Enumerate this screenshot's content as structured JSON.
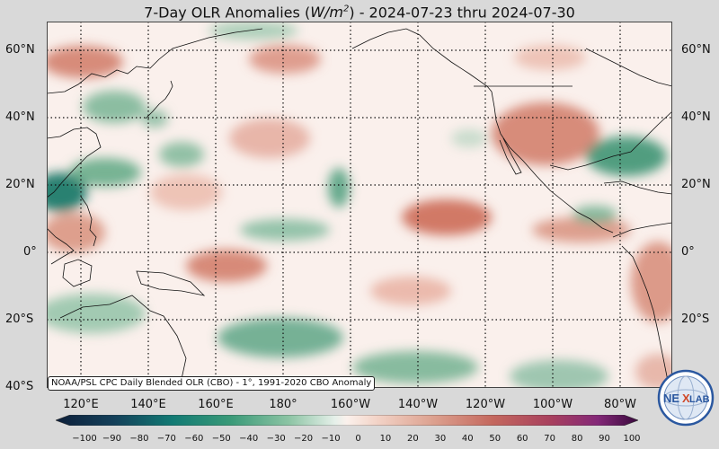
{
  "title": {
    "prefix": "7-Day OLR Anomalies (",
    "unit_base": "W/m",
    "unit_exp": "2",
    "suffix": ") - 2024-07-23 thru 2024-07-30"
  },
  "map": {
    "lat_labels": [
      "60°N",
      "40°N",
      "20°N",
      "0°",
      "20°S",
      "40°S"
    ],
    "lon_labels": [
      "120°E",
      "140°E",
      "160°E",
      "180°",
      "160°W",
      "140°W",
      "120°W",
      "100°W",
      "80°W"
    ],
    "lat_range": [
      -40,
      67
    ],
    "lon_range": [
      104,
      290
    ],
    "colors": {
      "background": "#faf0ec",
      "positive": "#c85a48",
      "negative": "#2e8b6a",
      "grid": "#111111",
      "coast": "#111111"
    }
  },
  "credit": "NOAA/PSL CPC Daily Blended OLR (CBO) - 1°, 1991-2020 CBO Anomaly",
  "colorbar": {
    "ticks": [
      "−100",
      "−90",
      "−80",
      "−70",
      "−60",
      "−50",
      "−40",
      "−30",
      "−20",
      "−10",
      "0",
      "10",
      "20",
      "30",
      "40",
      "50",
      "60",
      "70",
      "80",
      "90",
      "100"
    ],
    "range": [
      -100,
      100
    ]
  },
  "logo": {
    "text_a": "NE",
    "text_b": "LAB",
    "icon": "nexlab-globe-logo-icon"
  }
}
